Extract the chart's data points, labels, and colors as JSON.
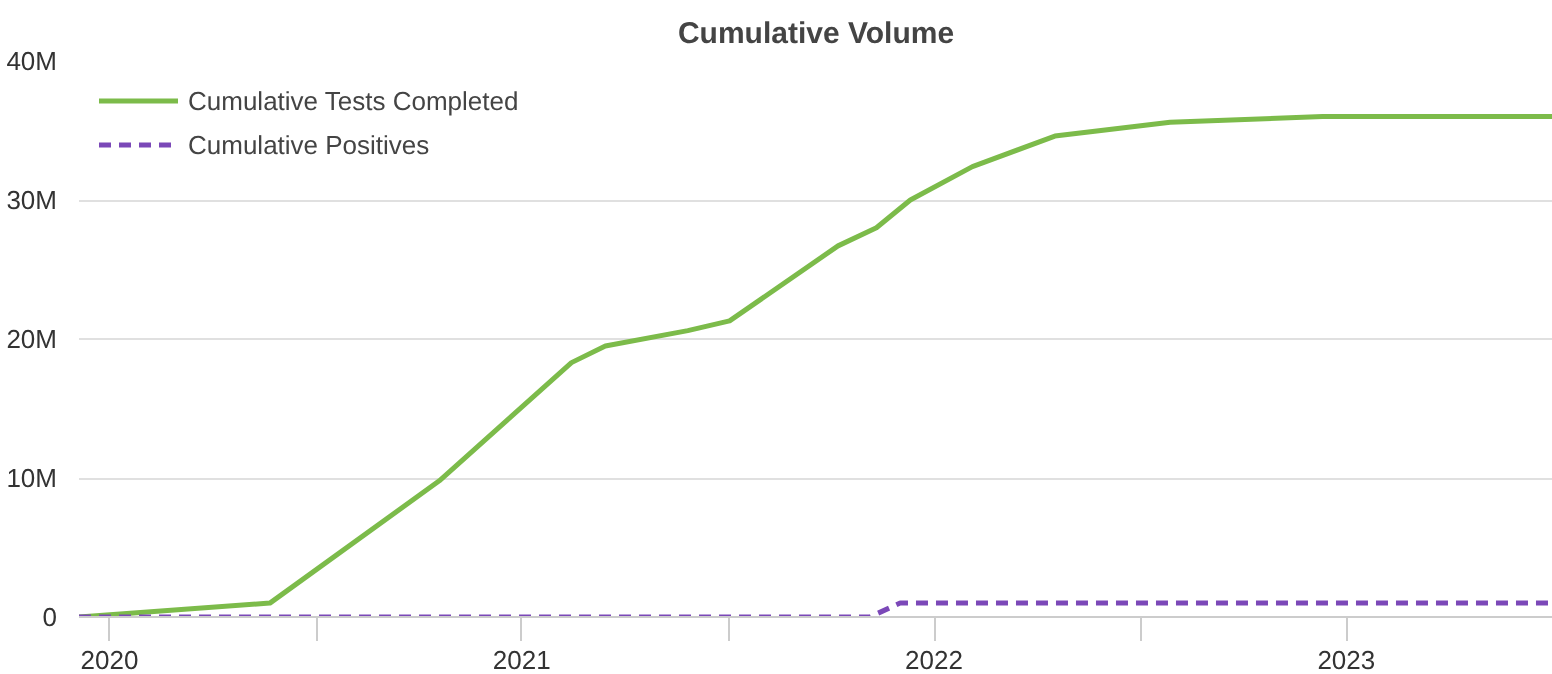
{
  "chart_data": {
    "type": "line",
    "title": "Cumulative Volume",
    "x": [
      "2020-06-04",
      "2020-11-20",
      "2021-04-19",
      "2021-08-14",
      "2021-09-13",
      "2021-11-25",
      "2022-01-01",
      "2022-04-07",
      "2022-05-11",
      "2022-06-10",
      "2022-08-04",
      "2022-10-16",
      "2023-01-26",
      "2023-06-10",
      "2023-12-31"
    ],
    "series": [
      {
        "name": "Cumulative Tests Completed",
        "color": "#7cbb4a",
        "line_style": "solid",
        "values": [
          0,
          1000000,
          9800000,
          18300000,
          19500000,
          20600000,
          21300000,
          26700000,
          28000000,
          30000000,
          32400000,
          34600000,
          35600000,
          36000000,
          36000000
        ]
      },
      {
        "name": "Cumulative Positives",
        "color": "#7b48b8",
        "line_style": "dashed",
        "x": [
          "2020-06-04",
          "2022-05-05",
          "2022-06-01",
          "2023-12-31"
        ],
        "values": [
          0,
          0,
          1000000,
          1000000
        ]
      }
    ],
    "ylim": [
      0,
      40000000
    ],
    "yticks": [
      {
        "value": 0,
        "label": "0"
      },
      {
        "value": 10000000,
        "label": "10M"
      },
      {
        "value": 20000000,
        "label": "20M"
      },
      {
        "value": 30000000,
        "label": "30M"
      },
      {
        "value": 40000000,
        "label": "40M"
      }
    ],
    "xlim": [
      "2020-06-04",
      "2023-12-31"
    ],
    "xticks": [
      {
        "value": "2020-07-01",
        "label": "2020"
      },
      {
        "value": "2021-01-01",
        "label": null
      },
      {
        "value": "2021-07-01",
        "label": "2021"
      },
      {
        "value": "2022-01-01",
        "label": null
      },
      {
        "value": "2022-07-01",
        "label": "2022"
      },
      {
        "value": "2023-01-01",
        "label": null
      },
      {
        "value": "2023-07-01",
        "label": "2023"
      }
    ],
    "grid": "y",
    "legend": "top left",
    "marker": "none"
  }
}
